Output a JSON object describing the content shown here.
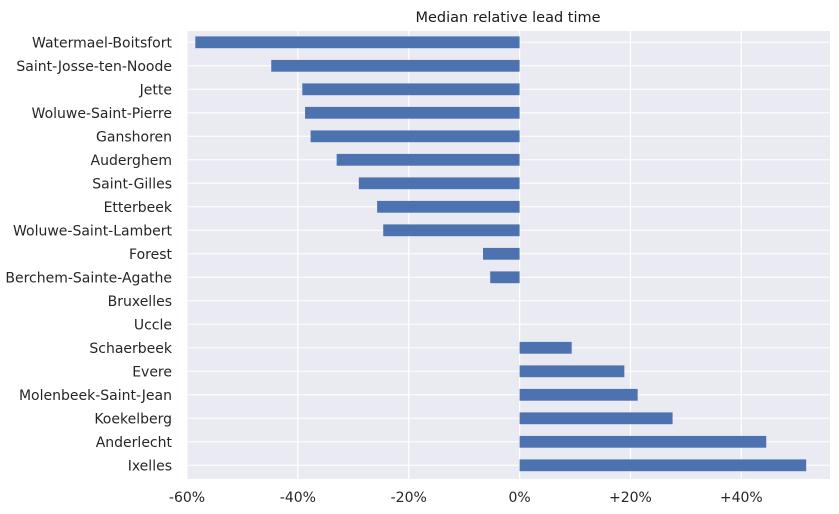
{
  "chart_data": {
    "type": "bar",
    "orientation": "horizontal",
    "title": "Median relative lead time",
    "xlabel": "",
    "ylabel": "",
    "xlim": [
      -0.6,
      0.56
    ],
    "grid": true,
    "bar_color": "#4c72b0",
    "background_color": "#eaeaf2",
    "grid_color": "#ffffff",
    "x_ticks": [
      {
        "value": -0.6,
        "label": "-60%"
      },
      {
        "value": -0.4,
        "label": "-40%"
      },
      {
        "value": -0.2,
        "label": "-20%"
      },
      {
        "value": 0.0,
        "label": "0%"
      },
      {
        "value": 0.2,
        "label": "+20%"
      },
      {
        "value": 0.4,
        "label": "+40%"
      }
    ],
    "categories": [
      "Watermael-Boitsfort",
      "Saint-Josse-ten-Noode",
      "Jette",
      "Woluwe-Saint-Pierre",
      "Ganshoren",
      "Auderghem",
      "Saint-Gilles",
      "Etterbeek",
      "Woluwe-Saint-Lambert",
      "Forest",
      "Berchem-Sainte-Agathe",
      "Bruxelles",
      "Uccle",
      "Schaerbeek",
      "Evere",
      "Molenbeek-Saint-Jean",
      "Koekelberg",
      "Anderlecht",
      "Ixelles"
    ],
    "values": [
      -0.585,
      -0.448,
      -0.392,
      -0.387,
      -0.377,
      -0.33,
      -0.29,
      -0.257,
      -0.246,
      -0.066,
      -0.053,
      0.0,
      0.0,
      0.094,
      0.189,
      0.213,
      0.276,
      0.445,
      0.517
    ]
  }
}
